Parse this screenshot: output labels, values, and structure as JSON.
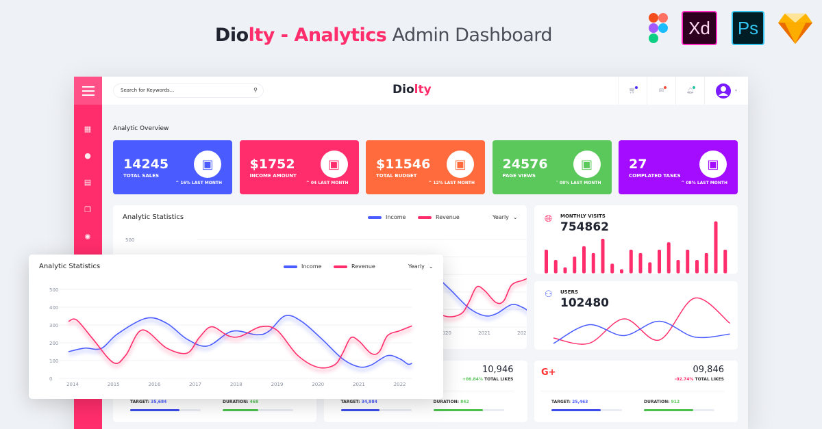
{
  "hero": {
    "brand_a": "Dio",
    "brand_b": "lty",
    "dash": " - ",
    "accent": "Analytics",
    "rest": " Admin Dashboard"
  },
  "tools": [
    {
      "name": "figma-icon",
      "label": ""
    },
    {
      "name": "adobe-xd-icon",
      "label": "Xd"
    },
    {
      "name": "photoshop-icon",
      "label": "Ps"
    },
    {
      "name": "sketch-icon",
      "label": ""
    }
  ],
  "topbar": {
    "search_placeholder": "Search for Keywords...",
    "logo_a": "Dio",
    "logo_b": "lty"
  },
  "overview_title": "Analytic Overview",
  "cards": [
    {
      "value": "14245",
      "label": "TOTAL SALES",
      "trend": "^  16% LAST MONTH",
      "color": "#4a5cff",
      "icon": "money-stack-icon"
    },
    {
      "value": "$1752",
      "label": "INCOME AMOUNT",
      "trend": "^  04 LAST MONTH",
      "color": "#ff2d6b",
      "icon": "growth-chart-icon"
    },
    {
      "value": "$11546",
      "label": "TOTAL BUDGET",
      "trend": "^  12% LAST MONTH",
      "color": "#ff6b3d",
      "icon": "package-icon"
    },
    {
      "value": "24576",
      "label": "PAGE VIEWS",
      "trend": "˅  08% LAST MONTH",
      "color": "#5ac85a",
      "icon": "checklist-icon"
    },
    {
      "value": "27",
      "label": "COMPLATED TASKS",
      "trend": "^  08% LAST MONTH",
      "color": "#a30cff",
      "icon": "task-board-icon"
    }
  ],
  "colors": {
    "brand": "#ff2d6b",
    "income": "#4a5cff",
    "revenue": "#ff2d6b",
    "green": "#5ac85a"
  },
  "chart_data": [
    {
      "type": "line",
      "title": "Analytic Statistics",
      "period": "Yearly",
      "x_ticks": [
        "2014",
        "2015",
        "2016",
        "2017",
        "2018",
        "2019",
        "2020",
        "2021",
        "2022"
      ],
      "y_ticks": [
        "0",
        "100",
        "200",
        "300",
        "400",
        "500"
      ],
      "ylim": [
        0,
        500
      ],
      "grid": true,
      "legend": "top-right",
      "series": [
        {
          "name": "Income",
          "color": "#4a5cff",
          "points": [
            [
              2013.9,
              150
            ],
            [
              2014.3,
              170
            ],
            [
              2014.7,
              168
            ],
            [
              2015.1,
              250
            ],
            [
              2015.8,
              338
            ],
            [
              2016.3,
              310
            ],
            [
              2016.8,
              220
            ],
            [
              2017.3,
              182
            ],
            [
              2017.9,
              265
            ],
            [
              2018.5,
              245
            ],
            [
              2018.8,
              265
            ],
            [
              2019.2,
              352
            ],
            [
              2019.6,
              320
            ],
            [
              2020.1,
              220
            ],
            [
              2020.6,
              110
            ],
            [
              2021.0,
              65
            ],
            [
              2021.3,
              75
            ],
            [
              2021.7,
              128
            ],
            [
              2022.0,
              110
            ],
            [
              2022.2,
              80
            ],
            [
              2022.3,
              85
            ]
          ]
        },
        {
          "name": "Revenue",
          "color": "#ff2d6b",
          "points": [
            [
              2013.9,
              320
            ],
            [
              2014.1,
              328
            ],
            [
              2014.5,
              220
            ],
            [
              2015.0,
              88
            ],
            [
              2015.3,
              130
            ],
            [
              2015.7,
              272
            ],
            [
              2016.3,
              170
            ],
            [
              2016.8,
              142
            ],
            [
              2017.1,
              230
            ],
            [
              2017.4,
              290
            ],
            [
              2017.8,
              240
            ],
            [
              2018.1,
              236
            ],
            [
              2018.6,
              290
            ],
            [
              2019.0,
              270
            ],
            [
              2019.5,
              130
            ],
            [
              2020.0,
              62
            ],
            [
              2020.4,
              75
            ],
            [
              2020.6,
              140
            ],
            [
              2020.8,
              228
            ],
            [
              2021.0,
              210
            ],
            [
              2021.3,
              140
            ],
            [
              2021.5,
              150
            ],
            [
              2021.7,
              240
            ],
            [
              2022.0,
              268
            ],
            [
              2022.3,
              295
            ]
          ]
        }
      ]
    },
    {
      "type": "bar",
      "title": "MONTHLY VISITS",
      "total": "754862",
      "values": [
        103,
        58,
        26,
        73,
        118,
        88,
        150,
        42,
        18,
        103,
        88,
        48,
        103,
        135,
        58,
        103,
        58,
        88,
        226,
        103
      ]
    },
    {
      "type": "line",
      "title": "USERS",
      "total": "102480",
      "series": [
        {
          "color": "#ff2d6b",
          "points": [
            [
              0,
              18
            ],
            [
              1,
              7
            ],
            [
              2,
              57
            ],
            [
              3,
              14
            ],
            [
              4,
              99
            ],
            [
              5,
              48
            ]
          ]
        },
        {
          "color": "#4a5cff",
          "points": [
            [
              0,
              7
            ],
            [
              1,
              45
            ],
            [
              2,
              23
            ],
            [
              3,
              52
            ],
            [
              4,
              20
            ],
            [
              5,
              26
            ]
          ]
        }
      ]
    }
  ],
  "social": [
    {
      "value": "",
      "change": "",
      "likes": "",
      "target_label": "TARGET:",
      "target": "35,684",
      "target_pct": 70,
      "duration_label": "DURATION:",
      "duration": "468",
      "duration_pct": 50
    },
    {
      "value": "10,946",
      "change": "+06.84%",
      "change_color": "#5ac85a",
      "likes": "TOTAL LIKES",
      "target_label": "TARGET:",
      "target": "34,984",
      "target_pct": 55,
      "duration_label": "DURATION:",
      "duration": "842",
      "duration_pct": 70
    },
    {
      "icon": "G+",
      "value": "09,846",
      "change": "-02.74%",
      "change_color": "#ff2d6b",
      "likes": "TOTAL LIKES",
      "target_label": "TARGET:",
      "target": "25,463",
      "target_pct": 70,
      "duration_label": "DURATION:",
      "duration": "912",
      "duration_pct": 70
    }
  ]
}
